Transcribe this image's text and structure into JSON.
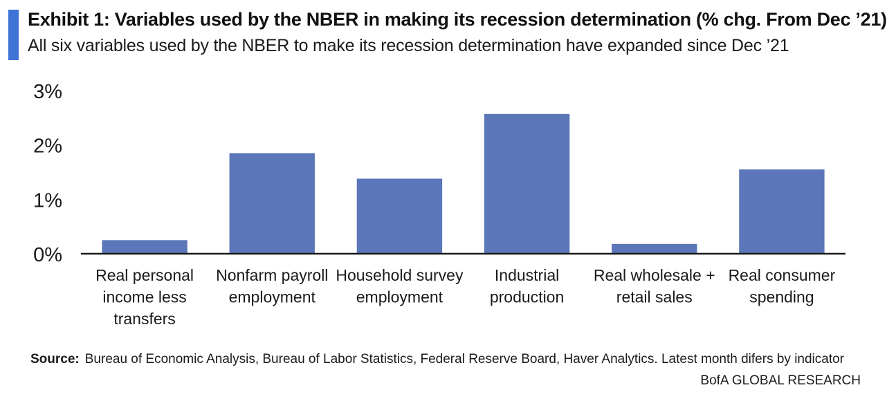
{
  "header": {
    "title": "Exhibit 1: Variables used by the NBER in making its recession determination (% chg. From Dec ’21)",
    "subtitle": "All six variables used by the NBER to make its recession determination have expanded since Dec ’21",
    "accent_color": "#3f73d6"
  },
  "chart_data": {
    "type": "bar",
    "categories": [
      [
        "Real personal",
        "income less",
        "transfers"
      ],
      [
        "Nonfarm payroll",
        "employment"
      ],
      [
        "Household survey",
        "employment"
      ],
      [
        "Industrial",
        "production"
      ],
      [
        "Real wholesale +",
        "retail sales"
      ],
      [
        "Real consumer",
        "spending"
      ]
    ],
    "values": [
      0.25,
      1.85,
      1.38,
      2.57,
      0.18,
      1.55
    ],
    "ylim": [
      0,
      3
    ],
    "yticks": [
      0,
      1,
      2,
      3
    ],
    "ytick_labels": [
      "0%",
      "1%",
      "2%",
      "3%"
    ],
    "bar_color": "#5b77b9",
    "grid": false,
    "legend": "none"
  },
  "footer": {
    "source_label": "Source:",
    "source_text": "Bureau of Economic  Analysis, Bureau of Labor Statistics, Federal Reserve Board, Haver Analytics. Latest month difers by indicator",
    "brand": "BofA GLOBAL RESEARCH"
  }
}
